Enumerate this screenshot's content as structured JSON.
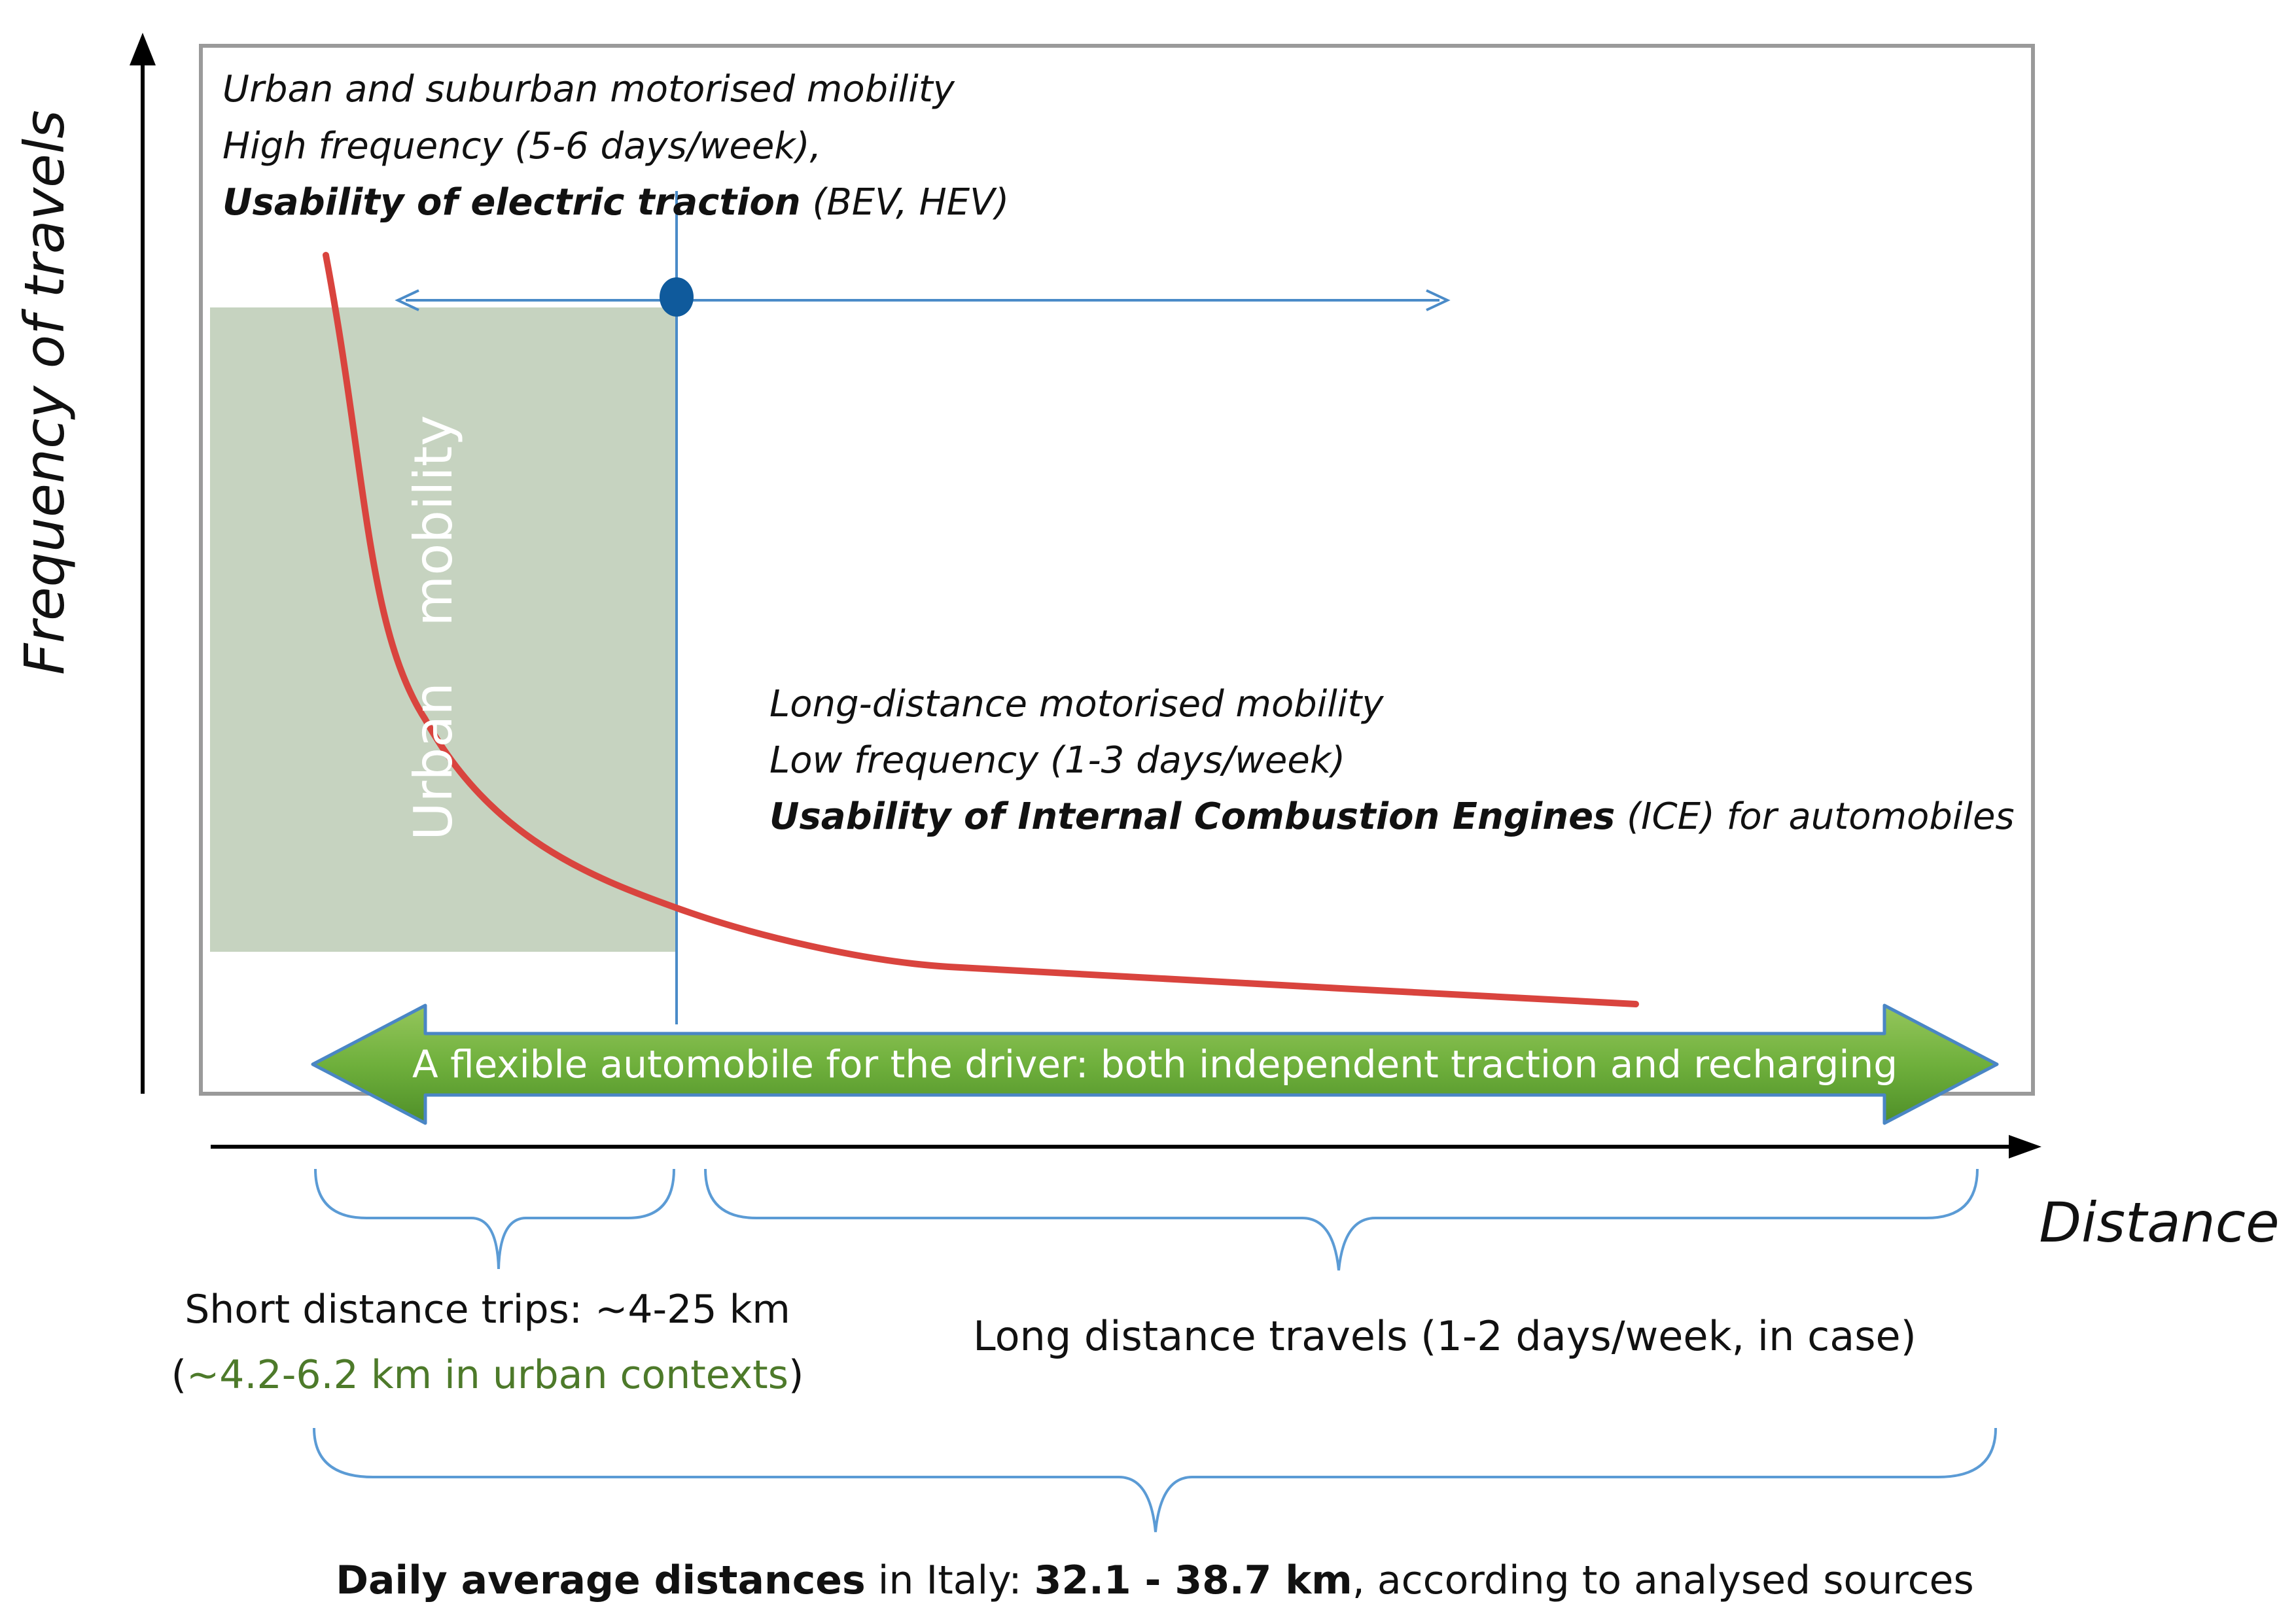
{
  "axes": {
    "y_label": "Frequency of travels",
    "x_label": "Distance"
  },
  "urban_box": {
    "title_line1": "Urban and suburban motorised mobility",
    "title_line2": "High frequency (5-6 days/week),",
    "title_line3_bold": "Usability of electric traction",
    "title_line3_rest": " (BEV, HEV)"
  },
  "urban_region": {
    "label_word1": "Urban",
    "label_word2": "mobility"
  },
  "long_box": {
    "line1": "Long-distance motorised mobility",
    "line2": "Low frequency (1-3 days/week)",
    "line3_bold": "Usability of Internal Combustion Engines",
    "line3_rest": " (ICE) for automobiles"
  },
  "flexible_arrow": {
    "label": "A flexible automobile for the driver: both independent traction and recharging"
  },
  "brackets": {
    "short_line1": "Short distance trips: ~4-25 km",
    "short_line2_open": "(",
    "short_line2_green": "~4.2-6.2 km in urban contexts",
    "short_line2_close": ")",
    "long_label": "Long distance travels (1-2 days/week, in case)"
  },
  "footer": {
    "bold1": "Daily average distances",
    "text1": " in Italy: ",
    "bold2": "32.1 - 38.7 km",
    "text2": ", according to analysed sources"
  },
  "colors": {
    "frame": "#9a9a9a",
    "urban_fill": "#c6d3c0",
    "curve": "#d9443e",
    "blue_line": "#4a8bc8",
    "marker": "#0f5a9c",
    "arrow_fill": "#6fb03c",
    "arrow_stroke": "#4a86c5",
    "green_text": "#4d7a2a",
    "bracket": "#5b9bd5"
  }
}
